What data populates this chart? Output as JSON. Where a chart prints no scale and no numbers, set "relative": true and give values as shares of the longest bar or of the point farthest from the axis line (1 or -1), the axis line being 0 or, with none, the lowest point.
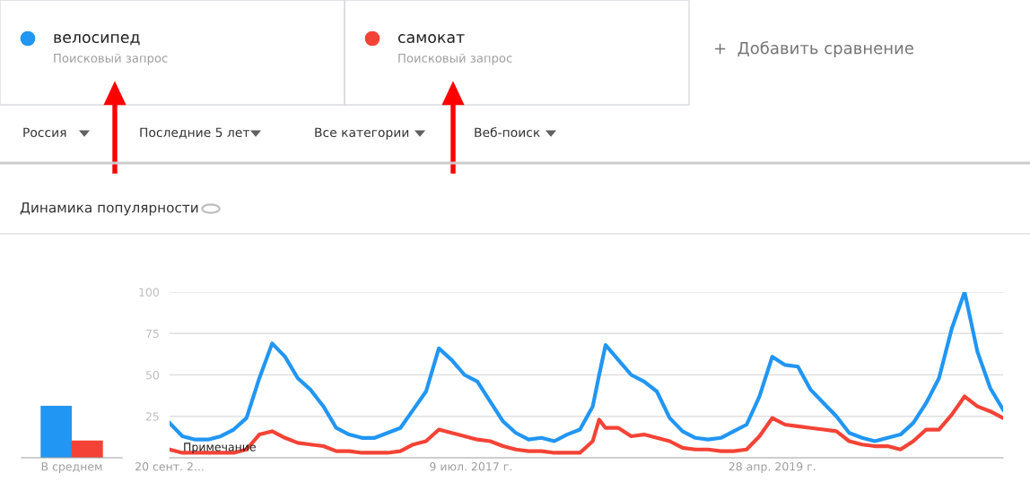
{
  "chart_data": [
    {
      "type": "bar",
      "relative": true,
      "categories": [
        "В среднем"
      ],
      "series": [
        {
          "color": "#2196f3",
          "values": [
            1
          ]
        },
        {
          "color": "#f44336",
          "values": [
            0.33
          ]
        }
      ]
    },
    {
      "type": "line",
      "title": "Динамика популярности",
      "legend": "top left",
      "grid": "y",
      "tick_labels": "xy",
      "x": [
        "2015-09-20",
        "2015-10-18",
        "2015-11-15",
        "2015-12-13",
        "2016-01-10",
        "2016-02-07",
        "2016-03-06",
        "2016-04-03",
        "2016-05-01",
        "2016-05-29",
        "2016-06-26",
        "2016-07-24",
        "2016-08-21",
        "2016-09-18",
        "2016-10-16",
        "2016-11-13",
        "2016-12-11",
        "2017-01-08",
        "2017-02-05",
        "2017-03-05",
        "2017-04-02",
        "2017-04-30",
        "2017-05-28",
        "2017-06-25",
        "2017-07-23",
        "2017-08-20",
        "2017-09-17",
        "2017-10-15",
        "2017-11-12",
        "2017-12-10",
        "2018-01-07",
        "2018-02-04",
        "2018-03-04",
        "2018-04-01",
        "2018-04-15",
        "2018-04-29",
        "2018-05-27",
        "2018-06-24",
        "2018-07-22",
        "2018-08-19",
        "2018-09-16",
        "2018-10-14",
        "2018-11-11",
        "2018-12-09",
        "2019-01-06",
        "2019-02-03",
        "2019-03-03",
        "2019-03-31",
        "2019-04-28",
        "2019-05-26",
        "2019-06-23",
        "2019-07-21",
        "2019-08-18",
        "2019-09-15",
        "2019-10-13",
        "2019-11-10",
        "2019-12-08",
        "2020-01-05",
        "2020-02-02",
        "2020-03-01",
        "2020-03-29",
        "2020-04-26",
        "2020-05-24",
        "2020-06-21",
        "2020-07-19",
        "2020-08-16",
        "2020-09-13"
      ],
      "series": [
        {
          "name": "велосипед",
          "color": "#2196f3",
          "values": [
            21,
            13,
            11,
            11,
            13,
            17,
            24,
            48,
            69,
            61,
            48,
            41,
            31,
            18,
            14,
            12,
            12,
            15,
            18,
            29,
            40,
            66,
            59,
            50,
            46,
            34,
            22,
            15,
            11,
            12,
            10,
            14,
            17,
            31,
            50,
            68,
            59,
            50,
            46,
            40,
            24,
            16,
            12,
            11,
            12,
            16,
            20,
            37,
            61,
            56,
            55,
            41,
            33,
            25,
            15,
            12,
            10,
            12,
            14,
            21,
            33,
            48,
            78,
            100,
            64,
            42,
            29
          ]
        },
        {
          "name": "самокат",
          "color": "#f44336",
          "values": [
            5,
            3,
            3,
            3,
            3,
            3,
            5,
            14,
            16,
            12,
            9,
            8,
            7,
            4,
            4,
            3,
            3,
            3,
            4,
            8,
            10,
            17,
            15,
            13,
            11,
            10,
            7,
            5,
            4,
            4,
            3,
            3,
            3,
            10,
            23,
            18,
            18,
            13,
            14,
            12,
            10,
            6,
            5,
            5,
            4,
            4,
            5,
            13,
            24,
            20,
            19,
            18,
            17,
            16,
            10,
            8,
            7,
            7,
            5,
            10,
            17,
            17,
            26,
            37,
            31,
            28,
            24
          ]
        }
      ],
      "xlim": [
        "2015-09-20",
        "2020-09-13"
      ],
      "xticks": [
        {
          "value": "2015-09-20",
          "label": "20 сент. 2..."
        },
        {
          "value": "2017-07-09",
          "label": "9 июл. 2017 г."
        },
        {
          "value": "2019-04-28",
          "label": "28 апр. 2019 г."
        }
      ],
      "ylim": [
        0,
        100
      ],
      "yticks": [
        25,
        50,
        75,
        100
      ],
      "annotations": [
        "Поисковый запрос",
        "Поисковый запрос",
        "+  Добавить сравнение",
        "Россия",
        "Последние 5 лет",
        "Все категории",
        "Веб-поиск",
        "Примечание"
      ]
    }
  ]
}
